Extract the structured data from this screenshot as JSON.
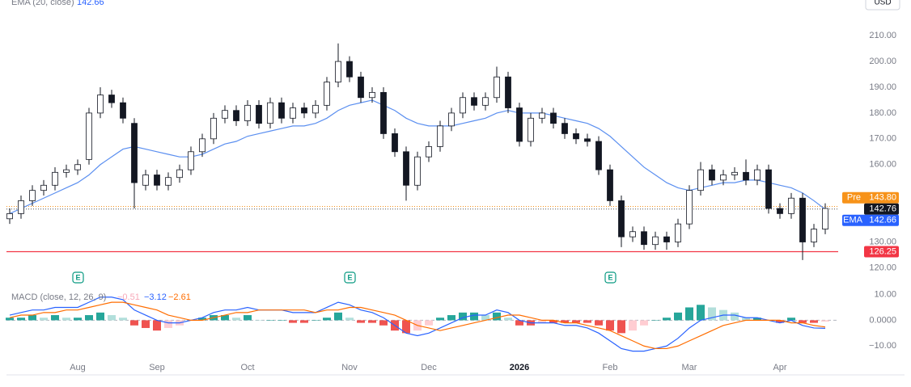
{
  "chart_data": [
    {
      "type": "candlestick",
      "currency": "USD",
      "earnings_marker": "E",
      "categories": [
        null,
        null,
        null,
        null,
        null,
        null,
        "Aug",
        null,
        null,
        null,
        null,
        null,
        null,
        "Sep",
        null,
        null,
        null,
        null,
        null,
        null,
        null,
        "Oct",
        null,
        null,
        null,
        null,
        null,
        null,
        null,
        null,
        "Nov",
        null,
        null,
        null,
        null,
        null,
        null,
        "Dec",
        null,
        null,
        null,
        null,
        null,
        null,
        null,
        "2026",
        null,
        null,
        null,
        null,
        null,
        null,
        null,
        "Feb",
        null,
        null,
        null,
        null,
        null,
        null,
        "Mar",
        null,
        null,
        null,
        null,
        null,
        null,
        null,
        "Apr",
        null,
        null,
        null,
        null
      ],
      "open": [
        139,
        141,
        146,
        150,
        152,
        157,
        158,
        162,
        180,
        187,
        184,
        176,
        152,
        156,
        152,
        155,
        158,
        165,
        170,
        178,
        181,
        177,
        183,
        176,
        184,
        178,
        182,
        180,
        183,
        192,
        200,
        194,
        186,
        188,
        172,
        165,
        152,
        163,
        167,
        175,
        180,
        186,
        183,
        186,
        194,
        182,
        169,
        178,
        180,
        176,
        172,
        170,
        169,
        158,
        146,
        132,
        134,
        129,
        132,
        130,
        137,
        150,
        158,
        154,
        156,
        157,
        154,
        158,
        143,
        141,
        147,
        130,
        135
      ],
      "high": [
        143,
        148,
        152,
        154,
        159,
        160,
        162,
        182,
        190,
        189,
        186,
        178,
        158,
        158,
        157,
        160,
        167,
        172,
        180,
        183,
        183,
        185,
        185,
        186,
        186,
        184,
        184,
        185,
        194,
        207,
        202,
        196,
        190,
        190,
        174,
        167,
        165,
        169,
        177,
        182,
        188,
        188,
        188,
        198,
        196,
        184,
        180,
        182,
        182,
        178,
        174,
        172,
        171,
        160,
        148,
        136,
        136,
        134,
        134,
        139,
        152,
        161,
        160,
        158,
        159,
        162,
        160,
        160,
        145,
        149,
        149,
        137,
        145
      ],
      "low": [
        137,
        139,
        144,
        148,
        150,
        155,
        156,
        160,
        178,
        182,
        176,
        143,
        150,
        150,
        150,
        153,
        156,
        163,
        168,
        176,
        175,
        175,
        174,
        174,
        176,
        176,
        178,
        178,
        181,
        190,
        192,
        184,
        184,
        170,
        163,
        146,
        150,
        161,
        165,
        173,
        178,
        181,
        181,
        184,
        180,
        167,
        167,
        176,
        174,
        170,
        168,
        167,
        156,
        144,
        128,
        130,
        127,
        127,
        127,
        128,
        135,
        148,
        152,
        152,
        154,
        152,
        152,
        141,
        139,
        139,
        123,
        128,
        133
      ],
      "close": [
        141,
        146,
        150,
        152,
        157,
        158,
        160,
        180,
        187,
        184,
        178,
        153,
        156,
        152,
        155,
        158,
        165,
        170,
        178,
        181,
        177,
        183,
        176,
        184,
        178,
        182,
        180,
        183,
        192,
        200,
        194,
        186,
        188,
        172,
        165,
        152,
        163,
        167,
        175,
        180,
        186,
        183,
        186,
        194,
        182,
        169,
        178,
        180,
        176,
        172,
        170,
        169,
        158,
        146,
        132,
        134,
        129,
        132,
        130,
        137,
        150,
        158,
        154,
        156,
        157,
        154,
        158,
        143,
        141,
        147,
        130,
        135,
        143
      ],
      "up_color": "#ffffff",
      "down_color": "#131722",
      "ema": {
        "name": "EMA (20, close)",
        "badge": "EMA",
        "color": "#5b8ff0",
        "values": [
          141,
          143,
          145,
          147,
          149,
          151,
          153,
          156,
          160,
          163,
          166,
          167,
          166,
          165,
          164,
          163,
          163,
          164,
          166,
          168,
          169,
          171,
          172,
          173,
          174,
          175,
          175,
          176,
          178,
          181,
          183,
          184,
          185,
          183,
          181,
          178,
          176,
          175,
          175,
          175,
          176,
          177,
          178,
          180,
          181,
          180,
          180,
          180,
          179,
          178,
          177,
          176,
          174,
          171,
          167,
          163,
          159,
          156,
          153,
          151,
          150,
          151,
          152,
          153,
          153,
          154,
          154,
          153,
          152,
          151,
          149,
          146,
          142.66
        ]
      },
      "pre_market": {
        "label": "Pre",
        "value": 143.8,
        "value_label": "143.80",
        "color": "#f7931a"
      },
      "last_price": {
        "value": 142.76,
        "color": "#131722"
      },
      "level": {
        "value": 126.25,
        "color": "#f23645"
      },
      "ylim": [
        117,
        216
      ],
      "yticks": [
        {
          "value": 210,
          "label": "210.00"
        },
        {
          "value": 200,
          "label": "200.00"
        },
        {
          "value": 190,
          "label": "190.00"
        },
        {
          "value": 180,
          "label": "180.00"
        },
        {
          "value": 170,
          "label": "170.00"
        },
        {
          "value": 160,
          "label": "160.00"
        },
        {
          "value": 130,
          "label": "130.00"
        },
        {
          "value": 120,
          "label": "120.00"
        }
      ]
    },
    {
      "type": "macd",
      "title": "MACD (close, 12, 26, 9)",
      "histogram": {
        "colors": [
          "#26a69a",
          "#b2dfdb",
          "#ef5350",
          "#ffcdd2"
        ],
        "values": [
          1,
          1,
          2,
          1,
          2,
          1,
          1,
          2,
          3,
          2,
          1,
          -2,
          -3,
          -4,
          -3,
          -2,
          0,
          1,
          2,
          2,
          1,
          2,
          0,
          0,
          0,
          -1,
          -1,
          0,
          1,
          3,
          1,
          -1,
          -1,
          -2,
          -4,
          -5,
          -4,
          -2,
          1,
          2,
          3,
          3,
          2,
          3,
          1,
          -2,
          -2,
          -1,
          -1,
          -1,
          -1,
          -1,
          -2,
          -4,
          -5,
          -4,
          -2,
          0,
          1,
          3,
          5,
          6,
          5,
          4,
          3,
          1,
          1,
          0,
          -1,
          1,
          -1,
          -1,
          -0.51
        ],
        "last_label": "−0.51",
        "label_color": "#f7a8b8"
      },
      "series": [
        {
          "name": "MACD",
          "color": "#2962ff",
          "last_label": "−3.12",
          "values": [
            2,
            3,
            4,
            4,
            5,
            5,
            5,
            7,
            9,
            9,
            8,
            4,
            2,
            0,
            -1,
            -1,
            0,
            1,
            3,
            4,
            4,
            5,
            4,
            4,
            4,
            3,
            3,
            3,
            5,
            7,
            6,
            4,
            3,
            1,
            -2,
            -5,
            -6,
            -5,
            -3,
            -1,
            1,
            2,
            2,
            4,
            3,
            0,
            -1,
            -1,
            -1,
            -2,
            -2,
            -3,
            -5,
            -8,
            -11,
            -12,
            -12,
            -11,
            -10,
            -7,
            -3,
            0,
            1,
            2,
            2,
            1,
            1,
            0,
            -1,
            0,
            -2,
            -3,
            -3.12
          ]
        },
        {
          "name": "Signal",
          "color": "#ff6d00",
          "last_label": "−2.61",
          "values": [
            1,
            2,
            2,
            3,
            3,
            4,
            4,
            5,
            6,
            7,
            7,
            6,
            5,
            4,
            2,
            1,
            0,
            0,
            1,
            2,
            3,
            3,
            4,
            4,
            4,
            4,
            4,
            3,
            4,
            4,
            5,
            5,
            4,
            3,
            2,
            0,
            -2,
            -3,
            -4,
            -3,
            -2,
            -1,
            0,
            1,
            2,
            2,
            1,
            0,
            0,
            -1,
            -1,
            -2,
            -3,
            -4,
            -6,
            -8,
            -10,
            -11,
            -11,
            -10,
            -8,
            -6,
            -4,
            -2,
            -1,
            0,
            0,
            0,
            0,
            -1,
            -1,
            -2,
            -2.61
          ]
        }
      ],
      "ylim": [
        -14,
        13
      ],
      "yticks": [
        {
          "value": 10,
          "label": "10.00"
        },
        {
          "value": 0,
          "label": "0.0000"
        },
        {
          "value": -10,
          "label": "−10.00"
        }
      ]
    }
  ]
}
